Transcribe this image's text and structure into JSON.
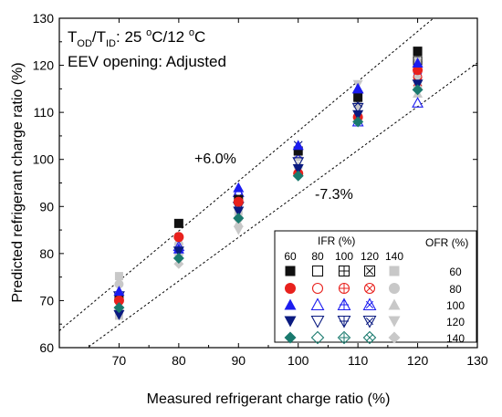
{
  "chart_data": {
    "type": "scatter",
    "xlabel": "Measured refrigerant charge ratio (%)",
    "ylabel": "Predicted refrigerant charge ratio (%)",
    "xlim": [
      60,
      130
    ],
    "ylim": [
      60,
      130
    ],
    "xticks": [
      "70",
      "80",
      "90",
      "100",
      "110",
      "120",
      "130"
    ],
    "yticks": [
      "60",
      "70",
      "80",
      "90",
      "100",
      "110",
      "120",
      "130"
    ],
    "grid": false,
    "condition_text": {
      "t": "T",
      "od": "OD",
      "slash_t": "/T",
      "id": "ID",
      "colon_value": ": 25 ",
      "deg1": "o",
      "c_slash_value": "C/12 ",
      "deg2": "o",
      "c_end": "C",
      "eev": "EEV opening: Adjusted"
    },
    "bounds": [
      {
        "label": "+6.0%",
        "factor": 1.06
      },
      {
        "label": "-7.3%",
        "factor": 0.927
      }
    ],
    "legend": {
      "placement": "bottom-right",
      "ifr_title": "IFR (%)",
      "ofr_title": "OFR (%)",
      "ifr_values": [
        "60",
        "80",
        "100",
        "120",
        "140"
      ],
      "ofr_values": [
        "60",
        "80",
        "100",
        "120",
        "140"
      ],
      "ofr_colors": [
        "#111111",
        "#e8211d",
        "#1c1cf0",
        "#0a1a80",
        "#1a7a6e"
      ],
      "ifr_markers": [
        "filled",
        "open",
        "open-plus",
        "open-x",
        "gray-filled"
      ]
    },
    "series": [
      {
        "ofr": 60,
        "color": "#111111",
        "points": [
          [
            70,
            70.5
          ],
          [
            80,
            86.4
          ],
          [
            90,
            91.5
          ],
          [
            100,
            101.8
          ],
          [
            110,
            113.2
          ],
          [
            120,
            123.0
          ]
        ]
      },
      {
        "ofr": 80,
        "color": "#e8211d",
        "points": [
          [
            70,
            70.0
          ],
          [
            80,
            83.5
          ],
          [
            90,
            91.0
          ],
          [
            100,
            97.0
          ],
          [
            110,
            109.0
          ],
          [
            120,
            119.0
          ]
        ]
      },
      {
        "ofr": 100,
        "color": "#1c1cf0",
        "points": [
          [
            70,
            72.0
          ],
          [
            80,
            81.0
          ],
          [
            90,
            94.0
          ],
          [
            100,
            103.0
          ],
          [
            110,
            115.0
          ],
          [
            120,
            120.5
          ]
        ]
      },
      {
        "ofr": 120,
        "color": "#0a1a80",
        "points": [
          [
            70,
            67.0
          ],
          [
            80,
            80.5
          ],
          [
            90,
            89.0
          ],
          [
            100,
            98.0
          ],
          [
            110,
            109.5
          ],
          [
            120,
            116.0
          ]
        ]
      },
      {
        "ofr": 140,
        "color": "#1a7a6e",
        "points": [
          [
            70,
            68.5
          ],
          [
            80,
            79.0
          ],
          [
            90,
            87.5
          ],
          [
            100,
            96.5
          ],
          [
            110,
            108.0
          ],
          [
            120,
            114.8
          ]
        ]
      }
    ],
    "gray_points": [
      [
        70,
        75.2
      ],
      [
        70,
        73.5
      ],
      [
        70,
        71.0
      ],
      [
        70,
        69.5
      ],
      [
        70,
        68.0
      ],
      [
        70,
        66.8
      ],
      [
        80,
        82.0
      ],
      [
        80,
        80.5
      ],
      [
        80,
        79.0
      ],
      [
        80,
        77.8
      ],
      [
        90,
        89.0
      ],
      [
        90,
        87.5
      ],
      [
        90,
        86.5
      ],
      [
        90,
        85.0
      ],
      [
        100,
        102.0
      ],
      [
        100,
        100.5
      ],
      [
        100,
        98.5
      ],
      [
        100,
        97.5
      ],
      [
        110,
        116.0
      ],
      [
        110,
        114.5
      ],
      [
        110,
        113.0
      ],
      [
        110,
        111.5
      ],
      [
        120,
        121.5
      ],
      [
        120,
        120.0
      ],
      [
        120,
        118.5
      ],
      [
        120,
        117.0
      ],
      [
        120,
        115.5
      ],
      [
        120,
        114.0
      ]
    ],
    "open_points": [
      {
        "x": 70,
        "y": 71.0,
        "marker": "open-down",
        "color": "#0a1a80"
      },
      {
        "x": 80,
        "y": 81.5,
        "marker": "open-up",
        "color": "#1c1cf0"
      },
      {
        "x": 90,
        "y": 93.0,
        "marker": "open-up",
        "color": "#1c1cf0"
      },
      {
        "x": 90,
        "y": 92.0,
        "marker": "open-x",
        "color": "#1c1cf0"
      },
      {
        "x": 90,
        "y": 90.0,
        "marker": "open-down",
        "color": "#0a1a80"
      },
      {
        "x": 100,
        "y": 103.0,
        "marker": "open-x",
        "color": "#0a1a80"
      },
      {
        "x": 100,
        "y": 101.0,
        "marker": "open-x",
        "color": "#1c1cf0"
      },
      {
        "x": 100,
        "y": 99.5,
        "marker": "open-down",
        "color": "#0a1a80"
      },
      {
        "x": 110,
        "y": 115.0,
        "marker": "open-up",
        "color": "#1c1cf0"
      },
      {
        "x": 110,
        "y": 113.5,
        "marker": "open-x",
        "color": "#1c1cf0"
      },
      {
        "x": 110,
        "y": 112.0,
        "marker": "open-x",
        "color": "#0a1a80"
      },
      {
        "x": 110,
        "y": 111.0,
        "marker": "open-down",
        "color": "#0a1a80"
      },
      {
        "x": 110,
        "y": 108.0,
        "marker": "open-up",
        "color": "#1c1cf0"
      },
      {
        "x": 110,
        "y": 109.0,
        "marker": "open-circle",
        "color": "#e8211d"
      },
      {
        "x": 120,
        "y": 112.0,
        "marker": "open-up",
        "color": "#1c1cf0"
      },
      {
        "x": 120,
        "y": 117.5,
        "marker": "open-circle",
        "color": "#e8211d"
      },
      {
        "x": 120,
        "y": 119.0,
        "marker": "open-x",
        "color": "#1c1cf0"
      },
      {
        "x": 120,
        "y": 116.5,
        "marker": "open-x",
        "color": "#e8211d"
      },
      {
        "x": 120,
        "y": 121.0,
        "marker": "open-square",
        "color": "#111111"
      }
    ]
  }
}
